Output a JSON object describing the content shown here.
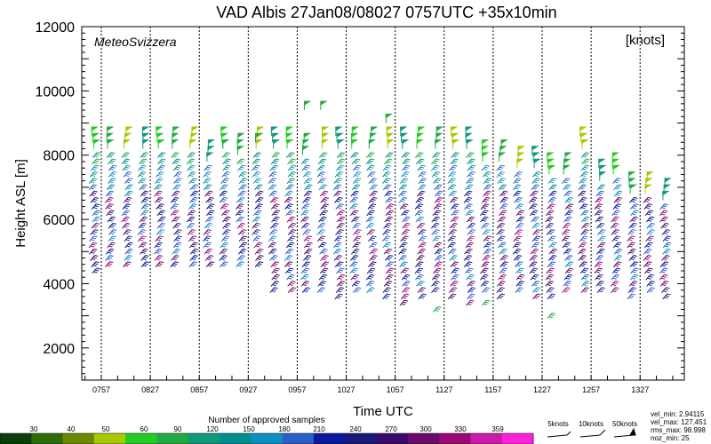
{
  "chart_data": {
    "type": "wind-barb-profile",
    "title": "VAD Albis 27Jan08/08027 0757UTC +35x10min",
    "brand": "MeteoSvizzera",
    "unit_label": "[knots]",
    "ylabel": "Height ASL [m]",
    "xlabel": "Time UTC",
    "ylim": [
      1000,
      12000
    ],
    "yticks": [
      2000,
      4000,
      6000,
      8000,
      10000,
      12000
    ],
    "xticks": [
      "0757",
      "0827",
      "0857",
      "0927",
      "0957",
      "1027",
      "1057",
      "1127",
      "1157",
      "1227",
      "1257",
      "1327"
    ],
    "n_profiles": 36,
    "top_height_m": [
      8600,
      8600,
      8600,
      8600,
      8600,
      8600,
      8600,
      8200,
      8600,
      8400,
      8600,
      8600,
      8600,
      8400,
      8600,
      8600,
      8600,
      8600,
      8600,
      8600,
      8600,
      8600,
      8600,
      8600,
      8200,
      8200,
      8000,
      8000,
      7800,
      7800,
      8600,
      7600,
      7800,
      7200,
      7200,
      7000
    ],
    "bottom_height_m": [
      4400,
      4600,
      4600,
      4600,
      4600,
      4600,
      4600,
      4600,
      4600,
      4600,
      4600,
      3800,
      3800,
      3800,
      3800,
      3600,
      3800,
      3800,
      3600,
      3400,
      3600,
      3800,
      3600,
      3400,
      3800,
      3600,
      3800,
      3600,
      3600,
      3800,
      3800,
      3800,
      3800,
      3600,
      3800,
      3600
    ],
    "isolated_barbs": [
      {
        "profile": 8,
        "height_m": 8200
      },
      {
        "profile": 10,
        "height_m": 8400
      },
      {
        "profile": 13,
        "height_m": 9400
      },
      {
        "profile": 14,
        "height_m": 9400
      },
      {
        "profile": 18,
        "height_m": 9000
      },
      {
        "profile": 21,
        "height_m": 3200
      },
      {
        "profile": 24,
        "height_m": 3400
      },
      {
        "profile": 28,
        "height_m": 3000
      }
    ],
    "colorbar": {
      "title": "Number of approved samples",
      "ticks": [
        "30",
        "40",
        "50",
        "60",
        "90",
        "120",
        "150",
        "180",
        "210",
        "240",
        "270",
        "300",
        "330",
        "359"
      ],
      "colors": [
        "#0a3d0a",
        "#2e6b0a",
        "#6b8a00",
        "#a8c800",
        "#22cc22",
        "#22aa44",
        "#11997a",
        "#008e8e",
        "#0f8fbf",
        "#2a5fc7",
        "#0a1a9a",
        "#1a1a7a",
        "#3a0a6a",
        "#6a0a6a",
        "#990a77",
        "#cc1aaa",
        "#ff22dd"
      ]
    },
    "legend": {
      "speed_examples": [
        "5knots",
        "10knots",
        "50knots"
      ],
      "stats": [
        "vel_min: 2.94115",
        "vel_max: 127.451",
        "rms_max: 98.998",
        "noz_min: 25"
      ]
    }
  }
}
